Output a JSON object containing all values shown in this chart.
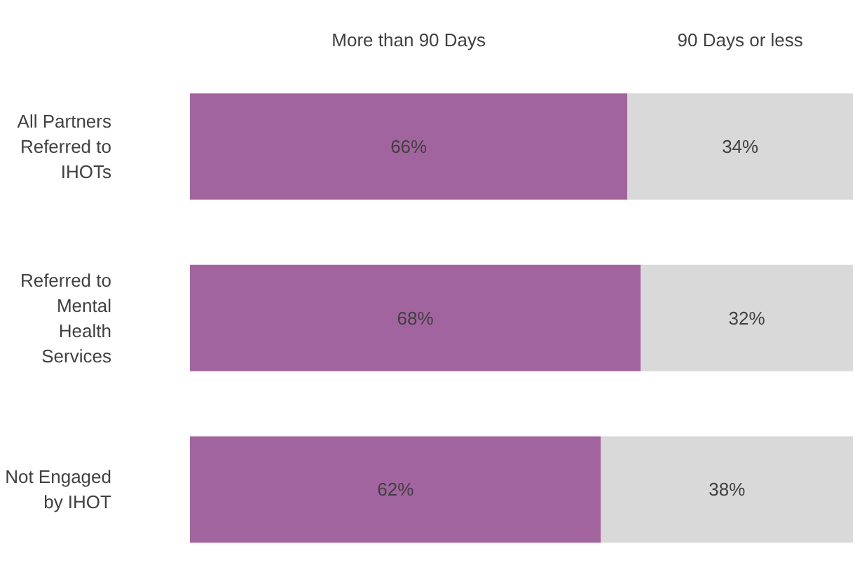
{
  "chart_data": {
    "type": "bar",
    "orientation": "horizontal",
    "stacked": true,
    "categories": [
      "All Partners\nReferred to\nIHOTs",
      "Referred to\nMental\nHealth\nServices",
      "Not Engaged\nby IHOT"
    ],
    "xlim": [
      0,
      100
    ],
    "series": [
      {
        "name": "More than 90 Days",
        "color": "#a2649f",
        "values": [
          66,
          68,
          62
        ],
        "value_labels": [
          "66%",
          "68%",
          "62%"
        ]
      },
      {
        "name": "90 Days or less",
        "color": "#d9d9d9",
        "values": [
          34,
          32,
          38
        ],
        "value_labels": [
          "34%",
          "32%",
          "38%"
        ]
      }
    ]
  }
}
